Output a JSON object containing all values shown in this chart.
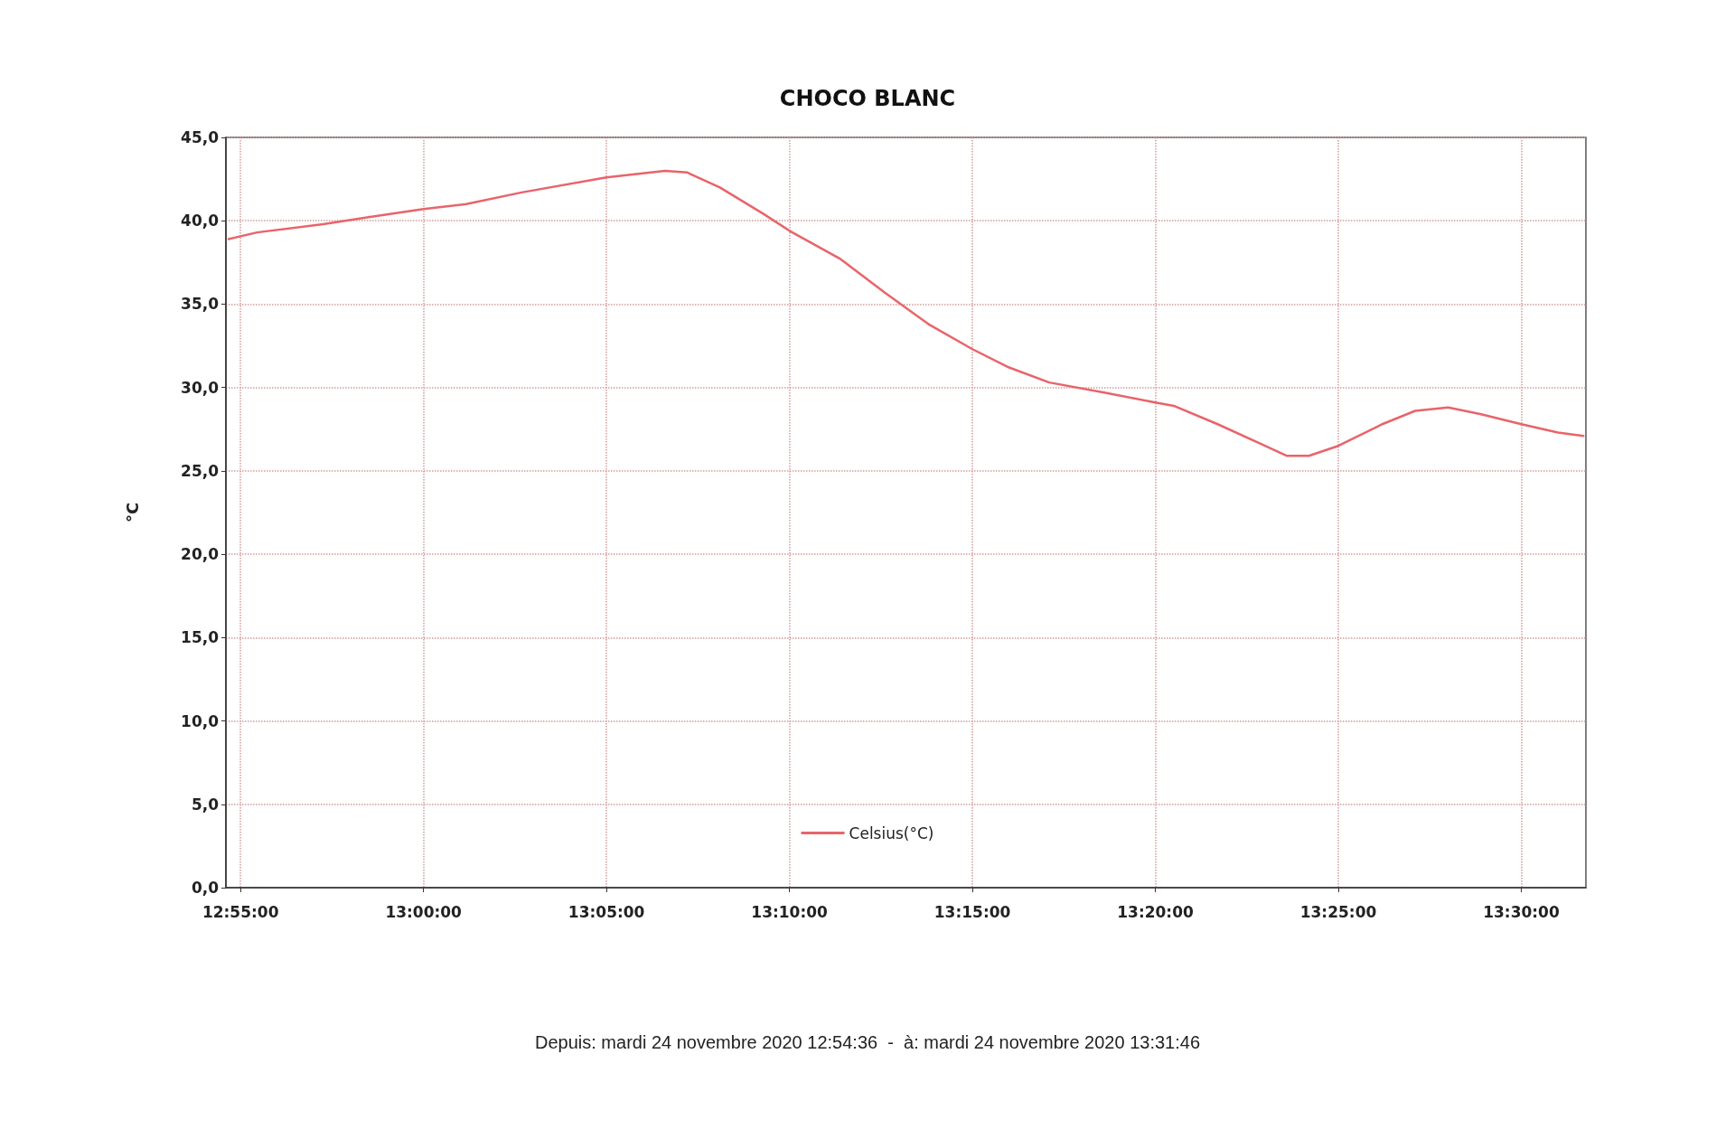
{
  "chart_data": {
    "type": "line",
    "title": "CHOCO BLANC",
    "ylabel": "°C",
    "annotations": [
      "Depuis: mardi 24 novembre 2020 12:54:36  -  à: mardi 24 novembre 2020 13:31:46"
    ],
    "xlim": [
      12.91,
      13.529444
    ],
    "xticks": [
      {
        "value": 12.916667,
        "label": "12:55:00"
      },
      {
        "value": 13.0,
        "label": "13:00:00"
      },
      {
        "value": 13.083333,
        "label": "13:05:00"
      },
      {
        "value": 13.166667,
        "label": "13:10:00"
      },
      {
        "value": 13.25,
        "label": "13:15:00"
      },
      {
        "value": 13.333333,
        "label": "13:20:00"
      },
      {
        "value": 13.416667,
        "label": "13:25:00"
      },
      {
        "value": 13.5,
        "label": "13:30:00"
      }
    ],
    "ylim": [
      0,
      45
    ],
    "yticks": [
      {
        "value": 0,
        "label": "0,0"
      },
      {
        "value": 5,
        "label": "5,0"
      },
      {
        "value": 10,
        "label": "10,0"
      },
      {
        "value": 15,
        "label": "15,0"
      },
      {
        "value": 20,
        "label": "20,0"
      },
      {
        "value": 25,
        "label": "25,0"
      },
      {
        "value": 30,
        "label": "30,0"
      },
      {
        "value": 35,
        "label": "35,0"
      },
      {
        "value": 40,
        "label": "40,0"
      },
      {
        "value": 45,
        "label": "45,0"
      }
    ],
    "grid": true,
    "legend": "bottom",
    "marker": "none",
    "line_style": "solid",
    "series": [
      {
        "name": "Celsius(°C)",
        "color": "#e8646a",
        "x": [
          12.9112,
          12.9242,
          12.9543,
          12.9743,
          13.0,
          13.0195,
          13.0447,
          13.0833,
          13.11,
          13.12,
          13.135,
          13.155,
          13.1667,
          13.19,
          13.21,
          13.23,
          13.25,
          13.2667,
          13.285,
          13.31,
          13.3333,
          13.3417,
          13.3617,
          13.3817,
          13.3933,
          13.4033,
          13.4167,
          13.4367,
          13.4517,
          13.4667,
          13.4817,
          13.5,
          13.5167,
          13.5283
        ],
        "values": [
          38.9,
          39.3,
          39.8,
          40.2,
          40.7,
          41.0,
          41.7,
          42.6,
          43.0,
          42.9,
          42.0,
          40.4,
          39.4,
          37.7,
          35.7,
          33.8,
          32.3,
          31.2,
          30.3,
          29.7,
          29.1,
          28.9,
          27.8,
          26.6,
          25.9,
          25.9,
          26.5,
          27.8,
          28.6,
          28.8,
          28.4,
          27.8,
          27.3,
          27.1
        ]
      }
    ]
  }
}
